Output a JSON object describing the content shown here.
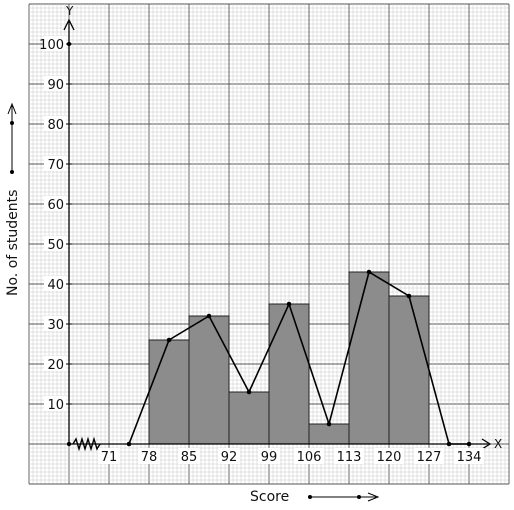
{
  "chart_data": {
    "type": "bar",
    "title": "",
    "xlabel": "Score",
    "ylabel": "No. of students",
    "x_axis_letter": "X",
    "y_axis_letter": "Y",
    "x_ticks": [
      "71",
      "78",
      "85",
      "92",
      "99",
      "106",
      "113",
      "120",
      "127",
      "134"
    ],
    "y_ticks": [
      "10",
      "20",
      "30",
      "40",
      "50",
      "60",
      "70",
      "80",
      "90",
      "100"
    ],
    "bins": [
      {
        "from": 78,
        "to": 85,
        "value": 26
      },
      {
        "from": 85,
        "to": 92,
        "value": 32
      },
      {
        "from": 92,
        "to": 99,
        "value": 13
      },
      {
        "from": 99,
        "to": 106,
        "value": 35
      },
      {
        "from": 106,
        "to": 113,
        "value": 5
      },
      {
        "from": 113,
        "to": 120,
        "value": 43
      },
      {
        "from": 120,
        "to": 127,
        "value": 37
      }
    ],
    "frequency_polygon": [
      {
        "x": 74.5,
        "y": 0
      },
      {
        "x": 81.5,
        "y": 26
      },
      {
        "x": 88.5,
        "y": 32
      },
      {
        "x": 95.5,
        "y": 13
      },
      {
        "x": 102.5,
        "y": 35
      },
      {
        "x": 109.5,
        "y": 5
      },
      {
        "x": 116.5,
        "y": 43
      },
      {
        "x": 123.5,
        "y": 37
      },
      {
        "x": 130.5,
        "y": 0
      },
      {
        "x": 134,
        "y": 0
      }
    ],
    "ylim": [
      0,
      100
    ],
    "grid": true,
    "axis_break": "zigzag",
    "colors": {
      "bar_fill": "#8c8c8c",
      "bar_stroke": "#222222",
      "line": "#000000",
      "grid_major": "#555555",
      "grid_minor": "#c8c8c8"
    }
  }
}
